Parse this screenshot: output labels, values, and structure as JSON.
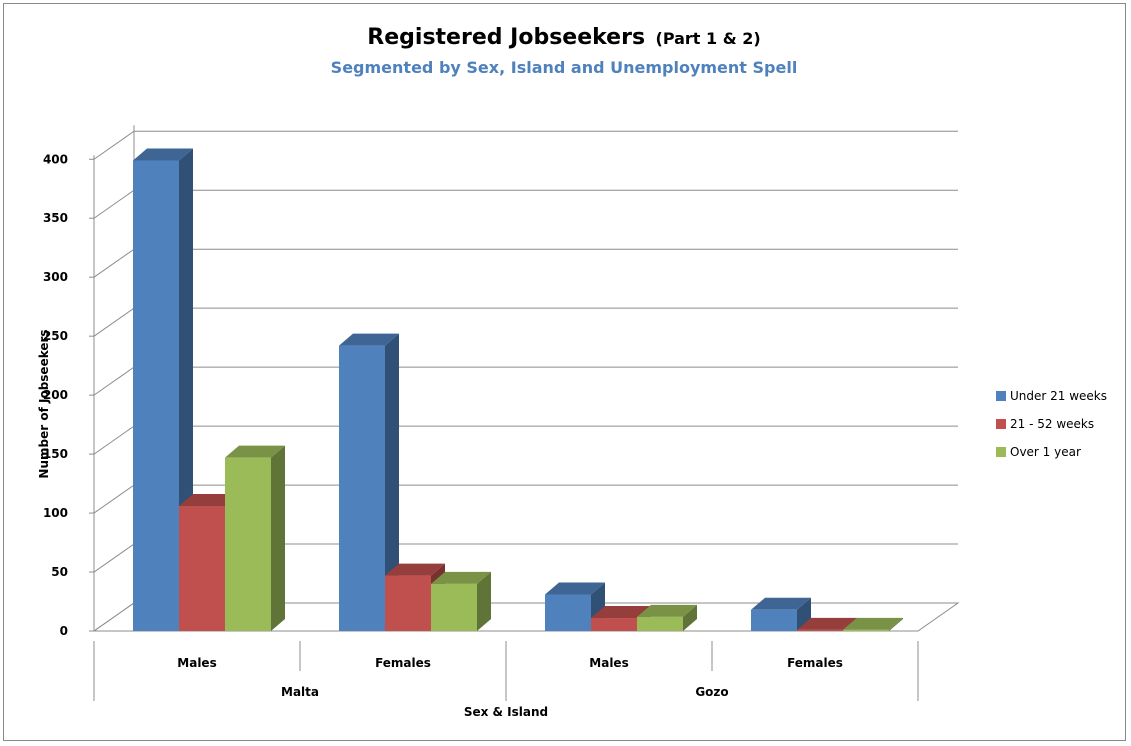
{
  "chart_data": {
    "type": "bar",
    "title": "Registered Jobseekers",
    "title_suffix": "(Part 1 & 2)",
    "subtitle": "Segmented by Sex, Island and Unemployment Spell",
    "ylabel": "Number of Jobseekers",
    "xlabel": "Sex & Island",
    "ylim": [
      0,
      400
    ],
    "y_ticks": [
      "0",
      "50",
      "100",
      "150",
      "200",
      "250",
      "300",
      "350",
      "400"
    ],
    "grid": true,
    "legend_position": "right",
    "categories": [
      "Males",
      "Females",
      "Males",
      "Females"
    ],
    "groups": [
      "Malta",
      "Gozo"
    ],
    "series": [
      {
        "name": "Under 21 weeks",
        "color": "#4f81bd",
        "values": [
          399,
          242,
          31,
          18
        ]
      },
      {
        "name": "21 - 52 weeks",
        "color": "#c0504d",
        "values": [
          106,
          47,
          11,
          1
        ]
      },
      {
        "name": "Over 1 year",
        "color": "#9bbb59",
        "values": [
          147,
          40,
          12,
          1
        ]
      }
    ]
  }
}
